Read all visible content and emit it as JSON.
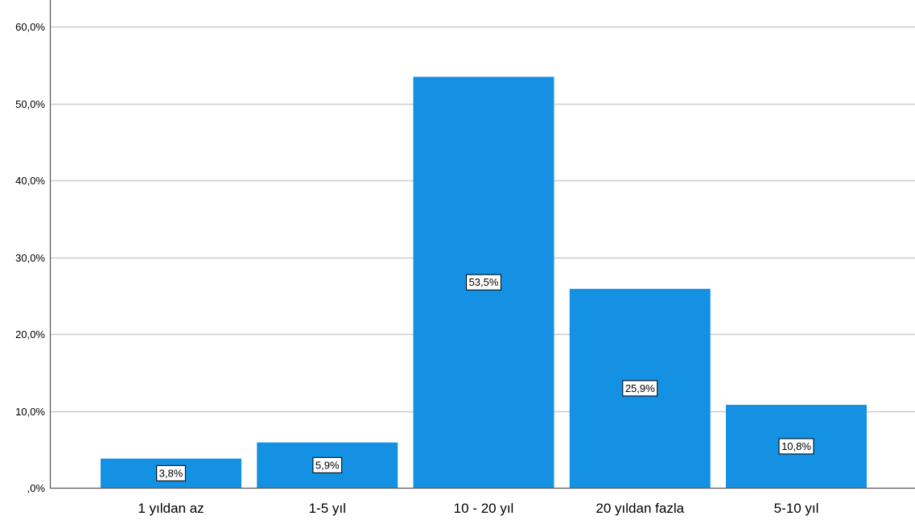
{
  "chart_data": {
    "type": "bar",
    "title": "",
    "xlabel": "",
    "ylabel": "",
    "categories": [
      "1 yıldan az",
      "1-5 yıl",
      "10 - 20 yıl",
      "20 yıldan fazla",
      "5-10 yıl"
    ],
    "values": [
      3.8,
      5.9,
      53.5,
      25.9,
      10.8
    ],
    "data_labels": [
      "3,8%",
      "5,9%",
      "53,5%",
      "25,9%",
      "10,8%"
    ],
    "yticks": [
      0,
      10,
      20,
      30,
      40,
      50,
      60
    ],
    "ytick_labels": [
      ",0%",
      "10,0%",
      "20,0%",
      "30,0%",
      "40,0%",
      "50,0%",
      "60,0%"
    ],
    "ylim": [
      0,
      63.5
    ],
    "grid": true,
    "legend": "none",
    "colors": {
      "bar": "#1591E3",
      "grid": "#CCCCCC",
      "axis": "#555555",
      "text": "#000000",
      "label_box_fill": "#FFFFFF",
      "label_box_stroke": "#000000"
    }
  }
}
